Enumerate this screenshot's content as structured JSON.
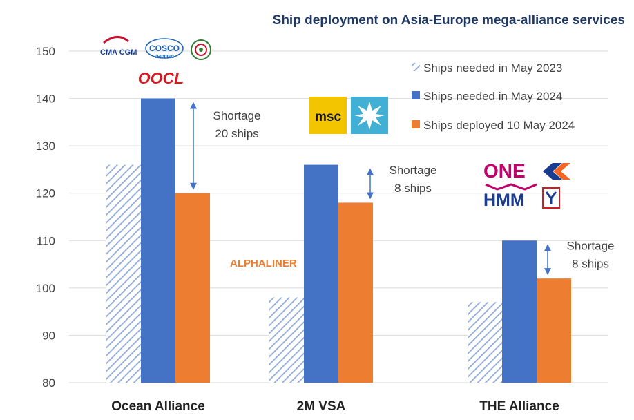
{
  "chart_data": {
    "type": "bar",
    "title": "Ship deployment on Asia-Europe mega-alliance services",
    "categories": [
      "Ocean Alliance",
      "2M VSA",
      "THE Alliance"
    ],
    "series": [
      {
        "name": "Ships needed in May 2023",
        "values": [
          126,
          98,
          97
        ],
        "color": "#4472c4",
        "pattern": "diagonal-hatch"
      },
      {
        "name": "Ships needed in May 2024",
        "values": [
          140,
          126,
          110
        ],
        "color": "#4472c4"
      },
      {
        "name": "Ships deployed 10 May 2024",
        "values": [
          120,
          118,
          102
        ],
        "color": "#ed7d31"
      }
    ],
    "ylim": [
      80,
      150
    ],
    "yticks": [
      "80",
      "90",
      "100",
      "110",
      "120",
      "130",
      "140",
      "150"
    ],
    "grid": true,
    "legend_position": "top-right",
    "annotations": [
      {
        "category": "Ocean Alliance",
        "lines": [
          "Shortage",
          "20 ships"
        ],
        "from": 140,
        "to": 120
      },
      {
        "category": "2M VSA",
        "lines": [
          "Shortage",
          "8 ships"
        ],
        "from": 126,
        "to": 118
      },
      {
        "category": "THE Alliance",
        "lines": [
          "Shortage",
          "8 ships"
        ],
        "from": 110,
        "to": 102
      }
    ],
    "watermark": "ALPHALINER"
  },
  "logos": {
    "ocean": [
      "CMA CGM",
      "COSCO",
      "SHIPPING",
      "OOCL"
    ],
    "twom": [
      "msc"
    ],
    "the": [
      "ONE",
      "HMM"
    ]
  },
  "colors": {
    "title": "#1f3864",
    "blue": "#4472c4",
    "orange": "#ed7d31",
    "hatch_line": "#8fa9d9",
    "grid": "#d9d9d9"
  }
}
